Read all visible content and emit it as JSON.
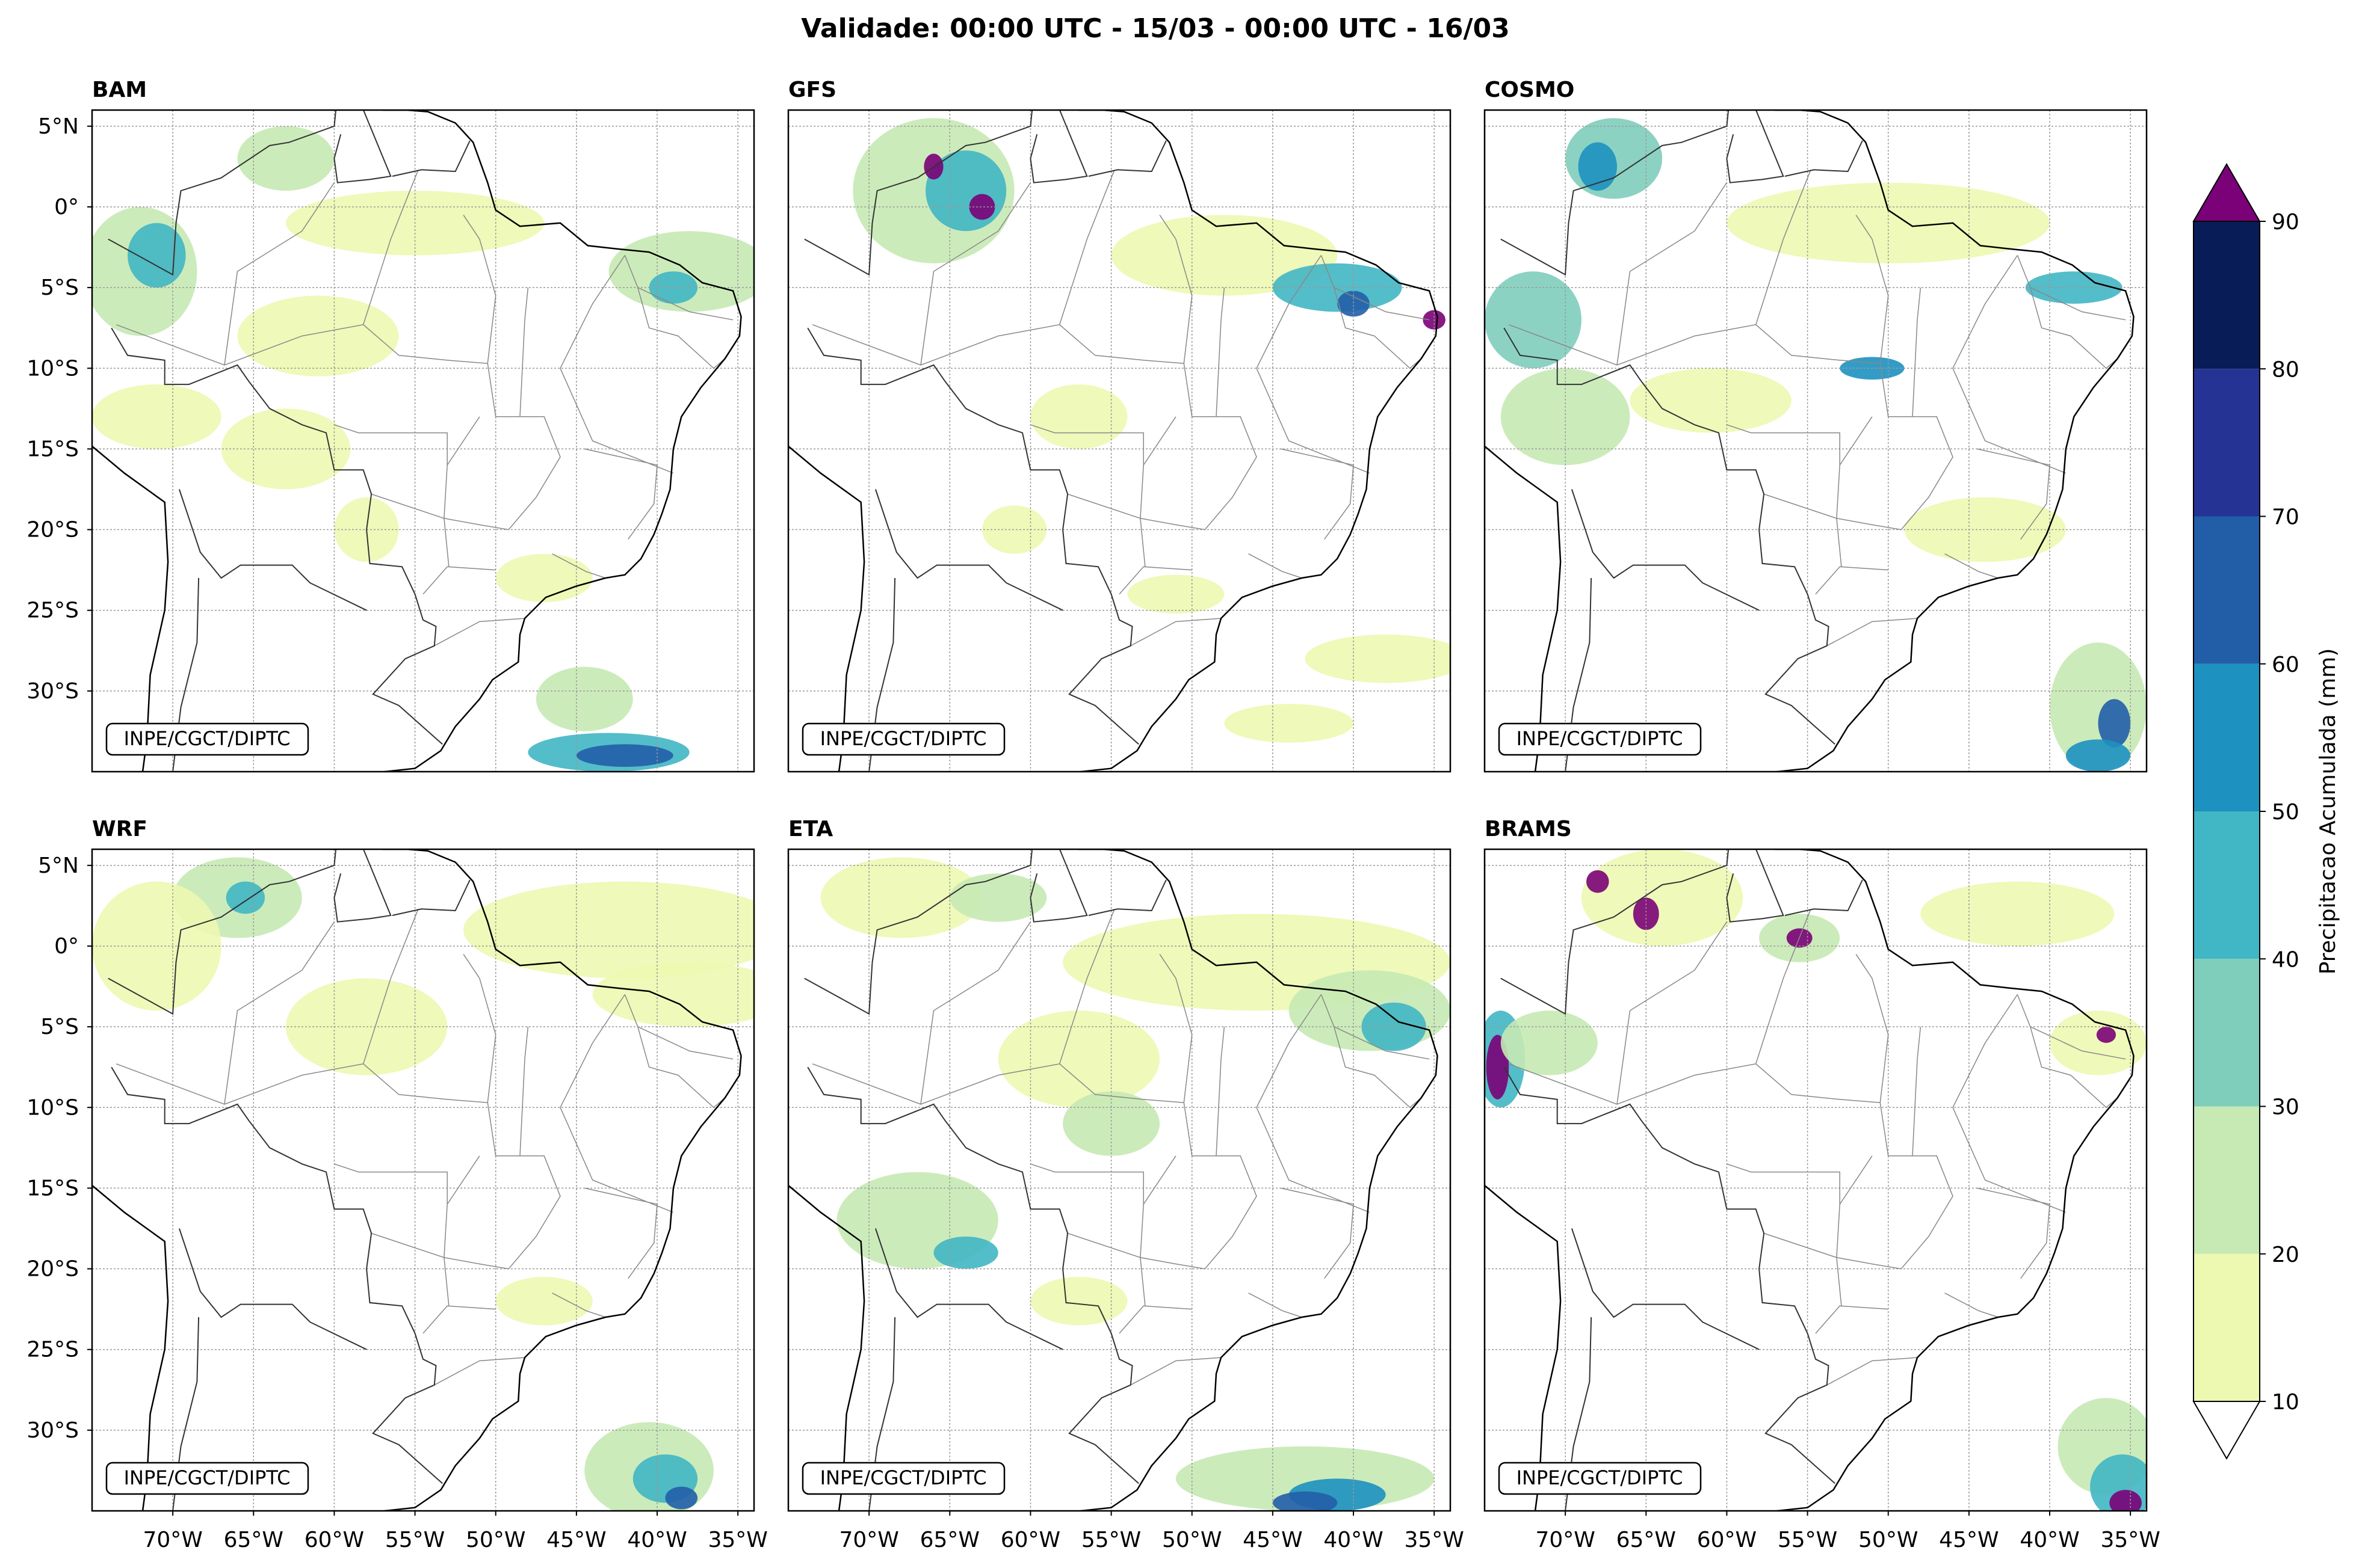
{
  "figure": {
    "title": "Validade: 00:00 UTC - 15/03 - 00:00 UTC - 16/03"
  },
  "panels": [
    {
      "name": "BAM",
      "credit": "INPE/CGCT/DIPTC"
    },
    {
      "name": "GFS",
      "credit": "INPE/CGCT/DIPTC"
    },
    {
      "name": "COSMO",
      "credit": "INPE/CGCT/DIPTC"
    },
    {
      "name": "WRF",
      "credit": "INPE/CGCT/DIPTC"
    },
    {
      "name": "ETA",
      "credit": "INPE/CGCT/DIPTC"
    },
    {
      "name": "BRAMS",
      "credit": "INPE/CGCT/DIPTC"
    }
  ],
  "axes": {
    "lat_ticks": [
      "5°N",
      "0°",
      "5°S",
      "10°S",
      "15°S",
      "20°S",
      "25°S",
      "30°S"
    ],
    "lat_values": [
      5,
      0,
      -5,
      -10,
      -15,
      -20,
      -25,
      -30
    ],
    "lon_ticks": [
      "70°W",
      "65°W",
      "60°W",
      "55°W",
      "50°W",
      "45°W",
      "40°W",
      "35°W"
    ],
    "lon_values": [
      -70,
      -65,
      -60,
      -55,
      -50,
      -45,
      -40,
      -35
    ],
    "lon_range": [
      -75,
      -34
    ],
    "lat_range": [
      -35,
      6
    ]
  },
  "colorbar": {
    "label": "Precipitacao Acumulada (mm)",
    "ticks": [
      "10",
      "20",
      "30",
      "40",
      "50",
      "60",
      "70",
      "80",
      "90"
    ],
    "colors": [
      "#edf8b1",
      "#c7e9b4",
      "#7fcdbb",
      "#41b6c4",
      "#1d91c0",
      "#225ea8",
      "#253494",
      "#081d58"
    ],
    "over_color": "#7a0177",
    "under_color": "#ffffff"
  }
}
